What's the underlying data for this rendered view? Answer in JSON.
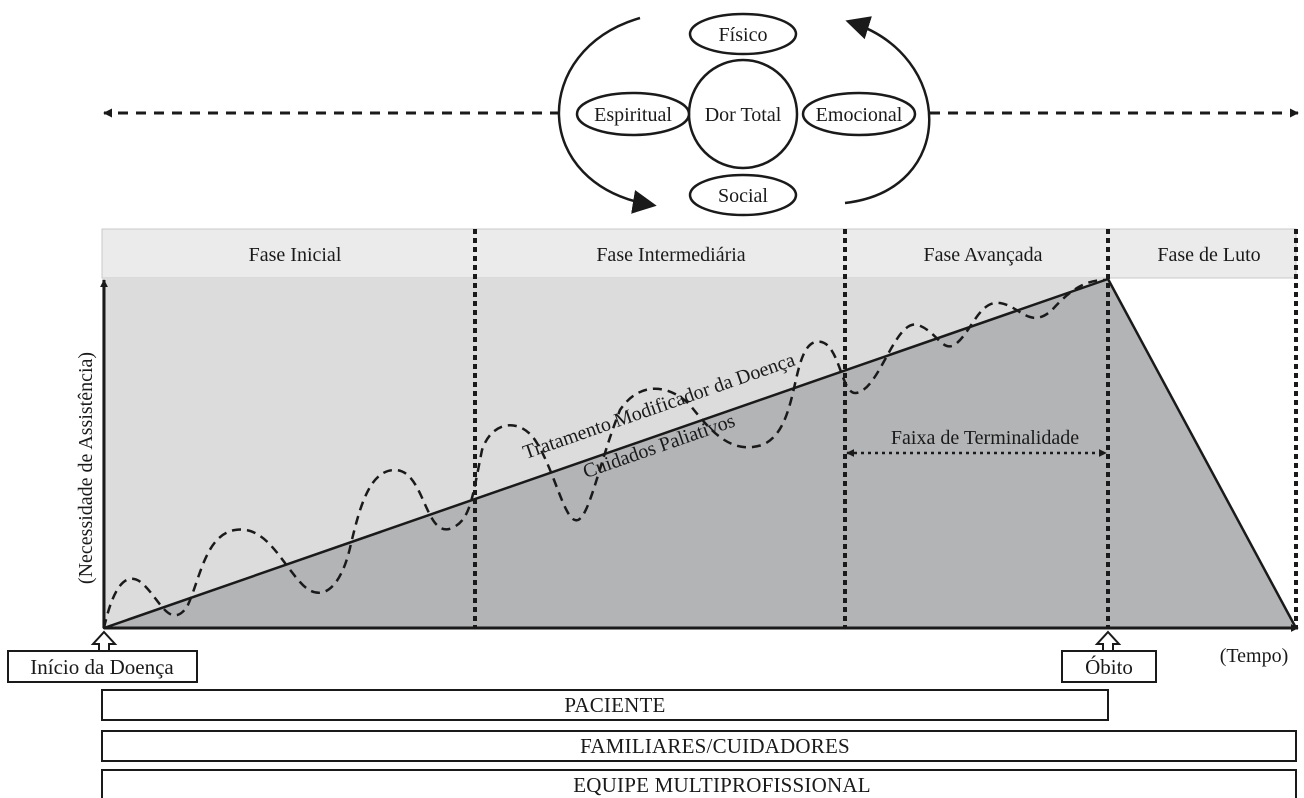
{
  "total_pain": {
    "center": "Dor Total",
    "physical": "Físico",
    "spiritual": "Espiritual",
    "emotional": "Emocional",
    "social": "Social"
  },
  "phases": {
    "initial": "Fase Inicial",
    "intermediate": "Fase Intermediária",
    "advanced": "Fase Avançada",
    "grief": "Fase de Luto"
  },
  "axes": {
    "y_label": "(Necessidade de Assistência)",
    "x_label": "(Tempo)"
  },
  "curves": {
    "disease_modifying": "Tratamento Modificador da Doença",
    "palliative": "Cuidados Paliativos",
    "terminality_range": "Faixa de Terminalidade"
  },
  "markers": {
    "onset": "Início da Doença",
    "death": "Óbito"
  },
  "bands": {
    "patient": "PACIENTE",
    "family": "FAMILIARES/CUIDADORES",
    "team": "EQUIPE MULTIPROFISSIONAL"
  },
  "colors": {
    "phase_header": "#ebebeb",
    "plot_background": "#dcdcdd",
    "triangle_fill": "#b3b4b6",
    "stroke": "#1a1a1a"
  }
}
